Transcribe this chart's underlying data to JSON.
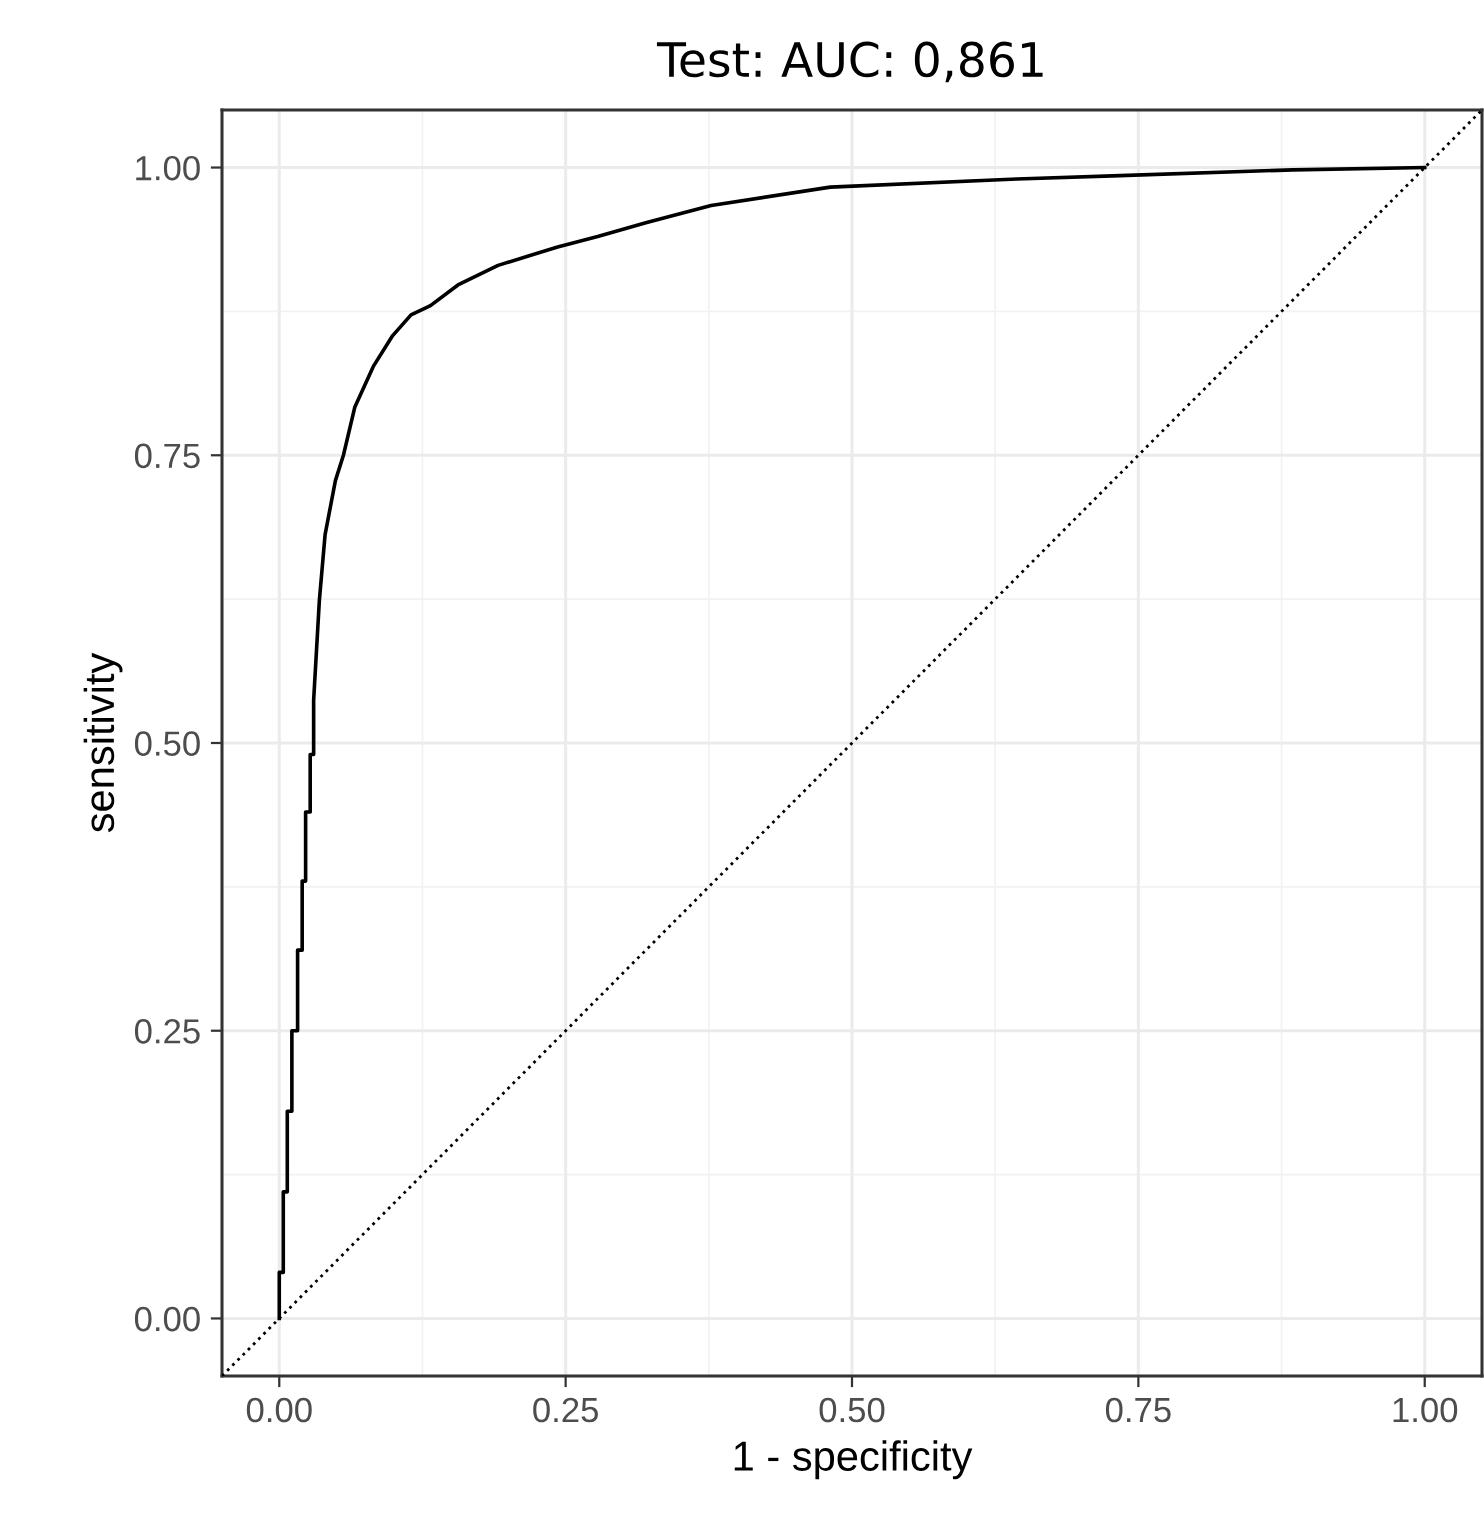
{
  "chart_data": {
    "type": "line",
    "title": "Test: AUC: 0,861",
    "xlabel": "1 - specificity",
    "ylabel": "sensitivity",
    "xlim": [
      -0.05,
      1.05
    ],
    "ylim": [
      -0.05,
      1.05
    ],
    "xticks": [
      {
        "value": 0,
        "label": "0.00"
      },
      {
        "value": 0.25,
        "label": "0.25"
      },
      {
        "value": 0.5,
        "label": "0.50"
      },
      {
        "value": 0.75,
        "label": "0.75"
      },
      {
        "value": 1,
        "label": "1.00"
      }
    ],
    "yticks": [
      {
        "value": 0,
        "label": "0.00"
      },
      {
        "value": 0.25,
        "label": "0.25"
      },
      {
        "value": 0.5,
        "label": "0.50"
      },
      {
        "value": 0.75,
        "label": "0.75"
      },
      {
        "value": 1,
        "label": "1.00"
      }
    ],
    "grid": true,
    "legend": false,
    "marker": "none",
    "series": [
      {
        "color": "#000000",
        "line_style": "solid",
        "x": [
          0,
          0,
          0.0035,
          0.0035,
          0.007,
          0.007,
          0.011,
          0.011,
          0.016,
          0.016,
          0.02,
          0.02,
          0.023,
          0.023,
          0.027,
          0.027,
          0.03,
          0.03,
          0.035,
          0.04,
          0.049,
          0.056,
          0.066,
          0.082,
          0.099,
          0.115,
          0.132,
          0.156,
          0.191,
          0.243,
          0.278,
          0.32,
          0.377,
          0.481,
          0.644,
          0.734,
          0.885,
          1.0
        ],
        "values": [
          0,
          0.04,
          0.04,
          0.11,
          0.11,
          0.18,
          0.18,
          0.25,
          0.25,
          0.32,
          0.32,
          0.38,
          0.38,
          0.44,
          0.44,
          0.49,
          0.49,
          0.537,
          0.624,
          0.681,
          0.728,
          0.75,
          0.792,
          0.827,
          0.854,
          0.872,
          0.88,
          0.898,
          0.915,
          0.931,
          0.94,
          0.952,
          0.967,
          0.983,
          0.99,
          0.993,
          0.998,
          1.0
        ]
      },
      {
        "color": "#000000",
        "line_style": "dotted",
        "x": [
          -0.05,
          1.05
        ],
        "values": [
          -0.05,
          1.05
        ]
      }
    ]
  }
}
